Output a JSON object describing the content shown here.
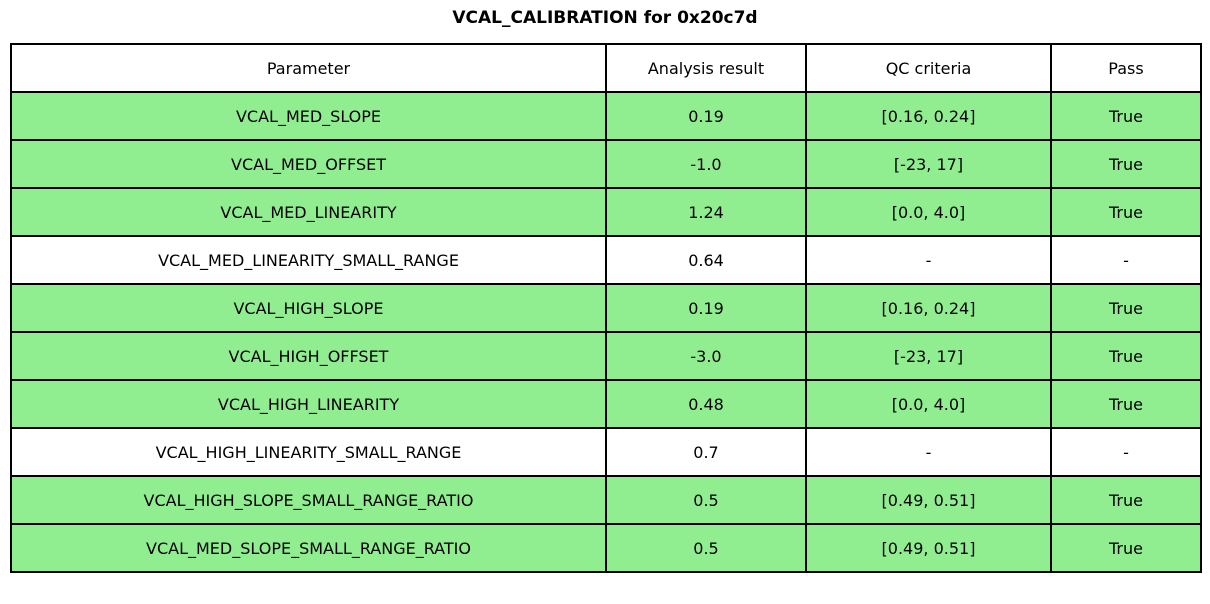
{
  "title": "VCAL_CALIBRATION for 0x20c7d",
  "colors": {
    "row_green": "#90EE90",
    "header_bg": "#ffffff",
    "border": "#000000",
    "text": "#000000",
    "background": "#ffffff"
  },
  "chart_data": {
    "type": "table",
    "title": "VCAL_CALIBRATION for 0x20c7d",
    "columns": [
      "Parameter",
      "Analysis result",
      "QC criteria",
      "Pass"
    ],
    "rows": [
      [
        "VCAL_MED_SLOPE",
        "0.19",
        "[0.16, 0.24]",
        "True"
      ],
      [
        "VCAL_MED_OFFSET",
        "-1.0",
        "[-23, 17]",
        "True"
      ],
      [
        "VCAL_MED_LINEARITY",
        "1.24",
        "[0.0, 4.0]",
        "True"
      ],
      [
        "VCAL_MED_LINEARITY_SMALL_RANGE",
        "0.64",
        "-",
        "-"
      ],
      [
        "VCAL_HIGH_SLOPE",
        "0.19",
        "[0.16, 0.24]",
        "True"
      ],
      [
        "VCAL_HIGH_OFFSET",
        "-3.0",
        "[-23, 17]",
        "True"
      ],
      [
        "VCAL_HIGH_LINEARITY",
        "0.48",
        "[0.0, 4.0]",
        "True"
      ],
      [
        "VCAL_HIGH_LINEARITY_SMALL_RANGE",
        "0.7",
        "-",
        "-"
      ],
      [
        "VCAL_HIGH_SLOPE_SMALL_RANGE_RATIO",
        "0.5",
        "[0.49, 0.51]",
        "True"
      ],
      [
        "VCAL_MED_SLOPE_SMALL_RANGE_RATIO",
        "0.5",
        "[0.49, 0.51]",
        "True"
      ]
    ],
    "row_green": [
      true,
      true,
      true,
      false,
      true,
      true,
      true,
      false,
      true,
      true
    ],
    "layout": {
      "grid": true,
      "header_row": true,
      "pass_rows_highlighted_green": true,
      "na_value": "-"
    }
  }
}
